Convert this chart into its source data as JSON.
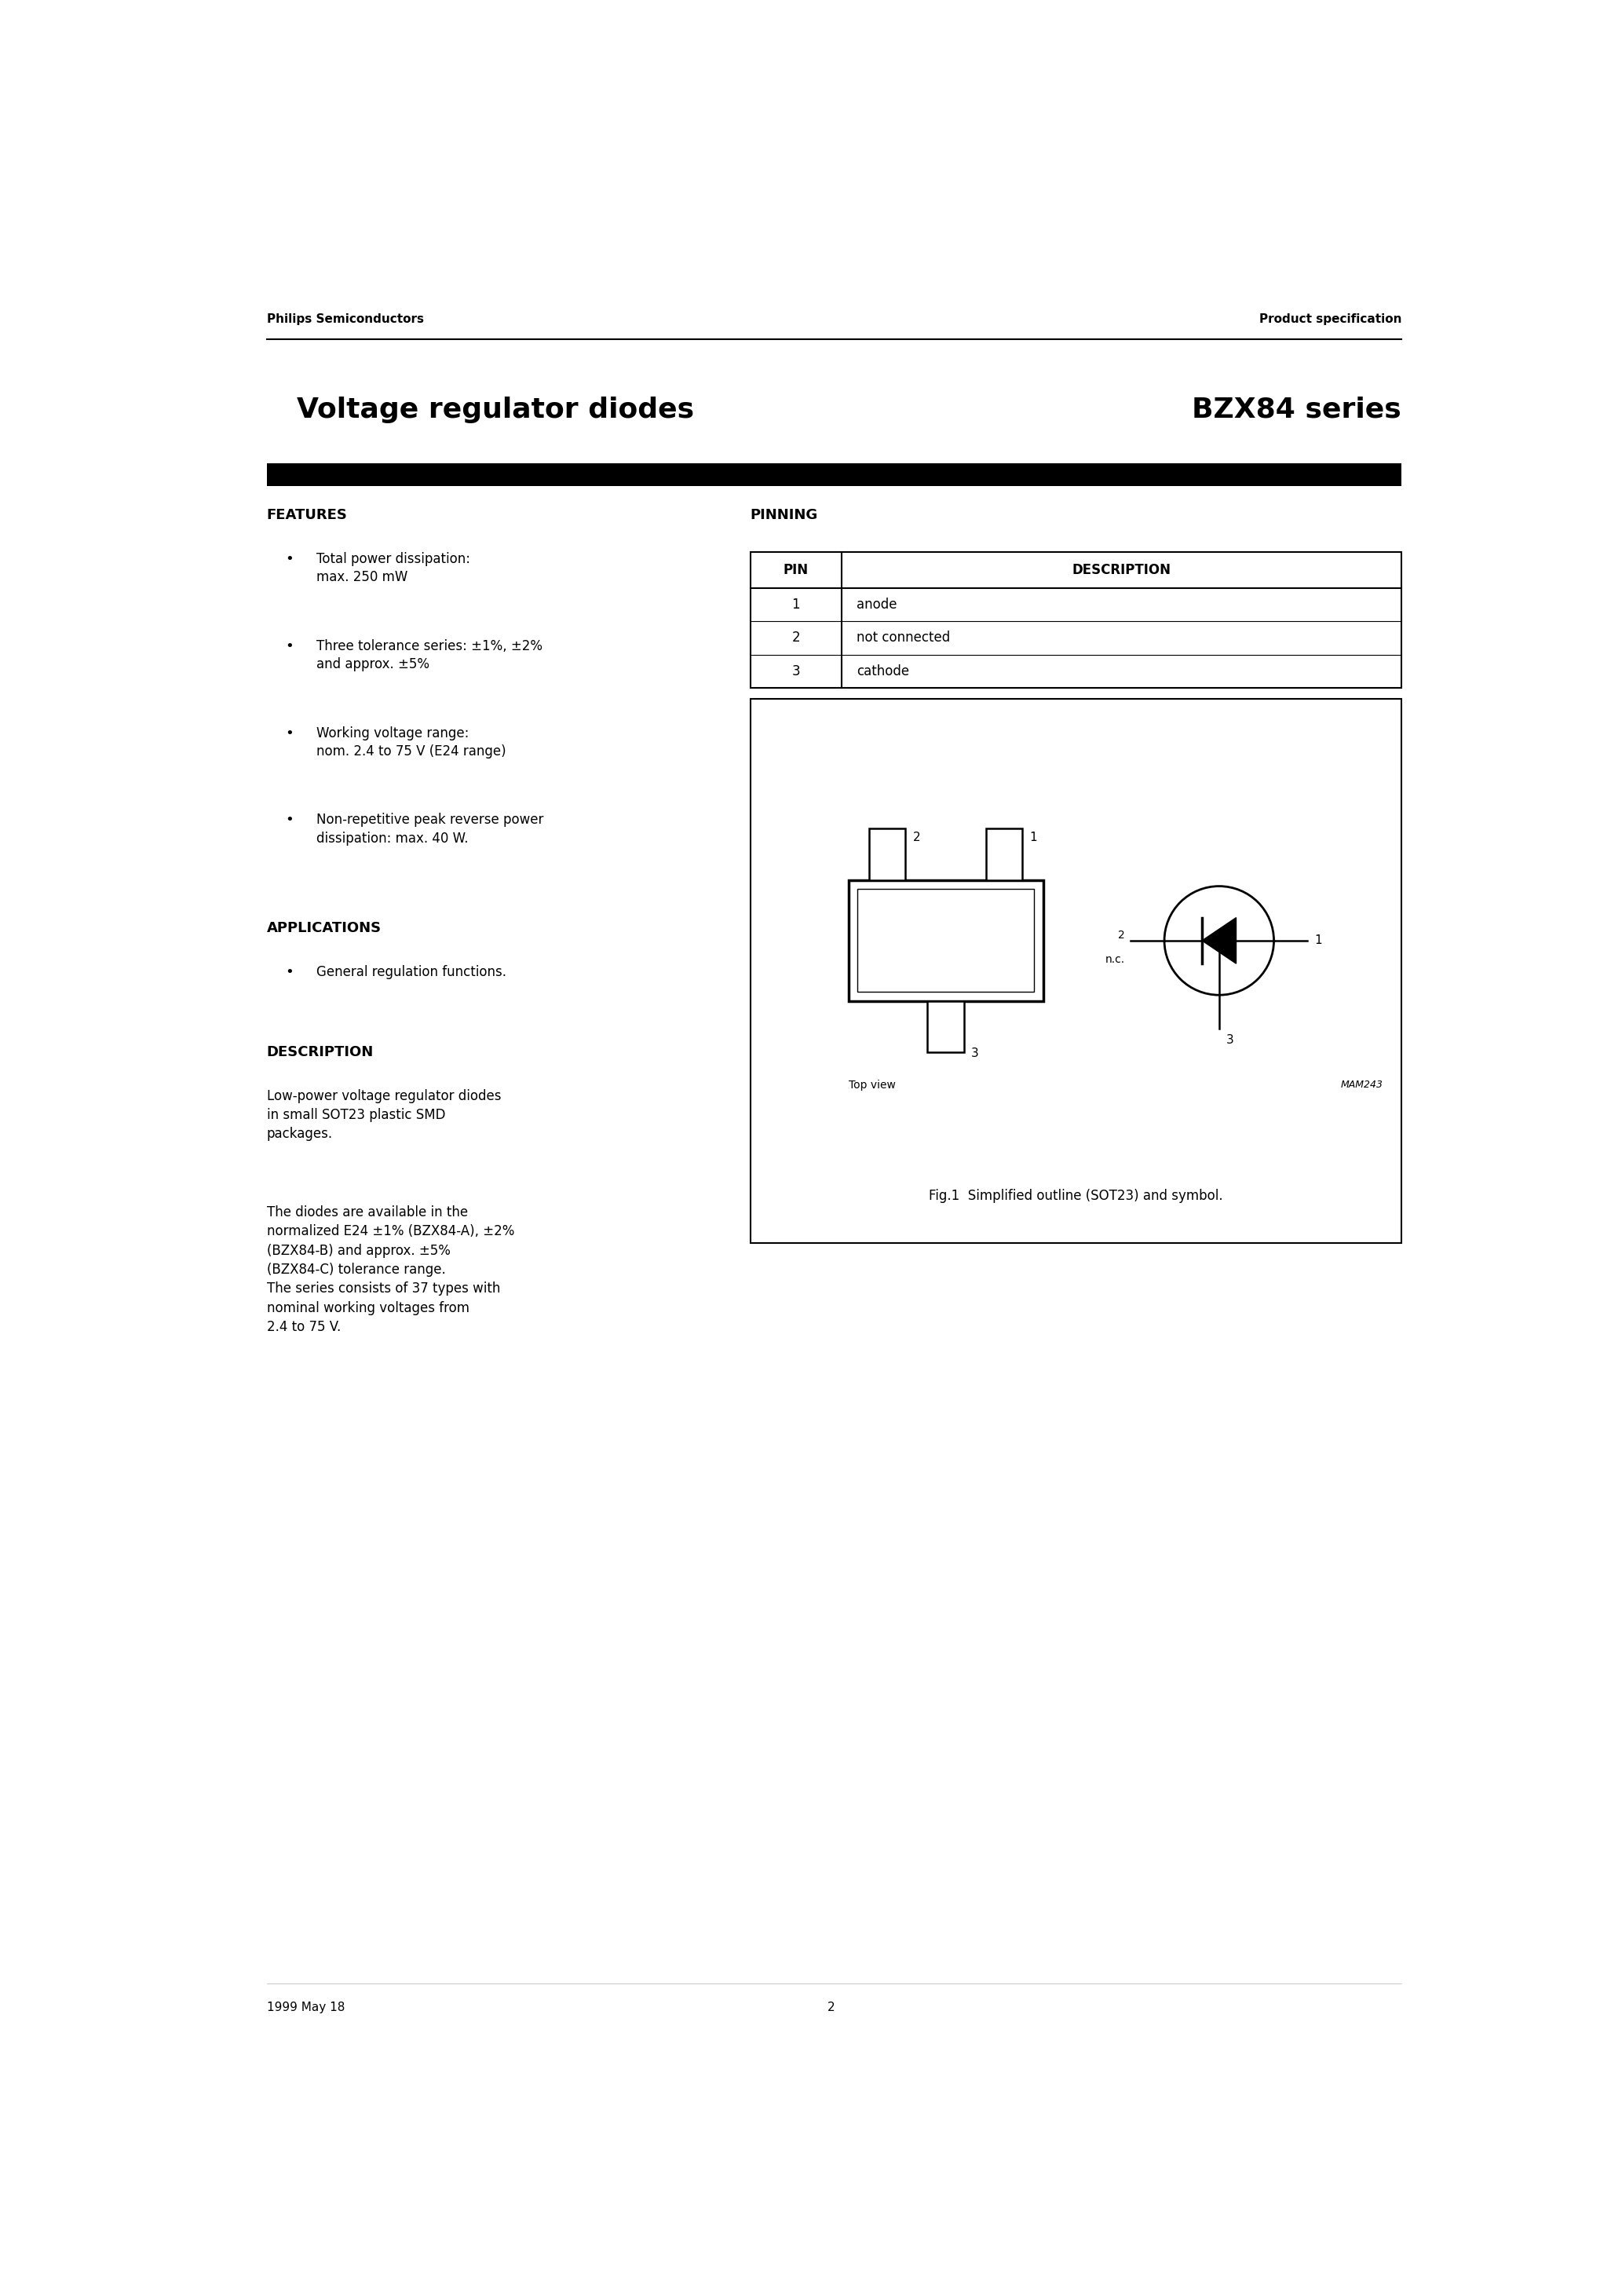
{
  "page_title_left": "Voltage regulator diodes",
  "page_title_right": "BZX84 series",
  "header_left": "Philips Semiconductors",
  "header_right": "Product specification",
  "footer_left": "1999 May 18",
  "footer_center": "2",
  "features_title": "FEATURES",
  "features_bullets": [
    "Total power dissipation:\nmax. 250 mW",
    "Three tolerance series: ±1%, ±2%\nand approx. ±5%",
    "Working voltage range:\nnom. 2.4 to 75 V (E24 range)",
    "Non-repetitive peak reverse power\ndissipation: max. 40 W."
  ],
  "applications_title": "APPLICATIONS",
  "applications_bullets": [
    "General regulation functions."
  ],
  "description_title": "DESCRIPTION",
  "description_text1": "Low-power voltage regulator diodes\nin small SOT23 plastic SMD\npackages.",
  "description_text2": "The diodes are available in the\nnormalized E24 ±1% (BZX84-A), ±2%\n(BZX84-B) and approx. ±5%\n(BZX84-C) tolerance range.\nThe series consists of 37 types with\nnominal working voltages from\n2.4 to 75 V.",
  "pinning_title": "PINNING",
  "pin_header": [
    "PIN",
    "DESCRIPTION"
  ],
  "pin_data": [
    [
      "1",
      "anode"
    ],
    [
      "2",
      "not connected"
    ],
    [
      "3",
      "cathode"
    ]
  ],
  "fig_caption": "Fig.1  Simplified outline (SOT23) and symbol.",
  "mam_label": "MAM243",
  "top_view_label": "Top view",
  "background_color": "#ffffff",
  "text_color": "#000000"
}
